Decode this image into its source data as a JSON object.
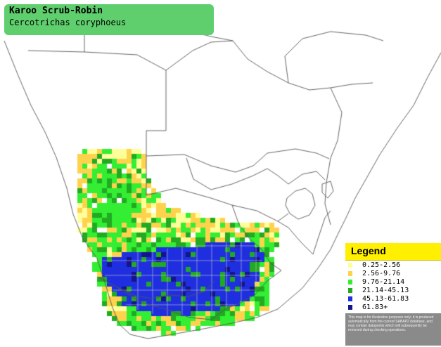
{
  "title": {
    "common_name": "Karoo Scrub-Robin",
    "scientific_name": "Cercotrichas coryphoeus"
  },
  "legend": {
    "title": "Legend",
    "items": [
      {
        "label": "0.25-2.56",
        "color": "#ffff99"
      },
      {
        "label": "2.56-9.76",
        "color": "#ffd24d"
      },
      {
        "label": "9.76-21.14",
        "color": "#33ee33"
      },
      {
        "label": "21.14-45.13",
        "color": "#22aa22"
      },
      {
        "label": "45.13-61.83",
        "color": "#1f2fe0"
      },
      {
        "label": "61.83+",
        "color": "#14148c"
      }
    ],
    "disclaimer": "This map is for illustrative purposes only; it is produced automatically from the current SABAP2 database, and may contain datapoints which will subsequently be removed during checking operations."
  },
  "map": {
    "background_color": "#ffffff",
    "border_color": "#555555",
    "grid_color": "#c9c9c9"
  }
}
